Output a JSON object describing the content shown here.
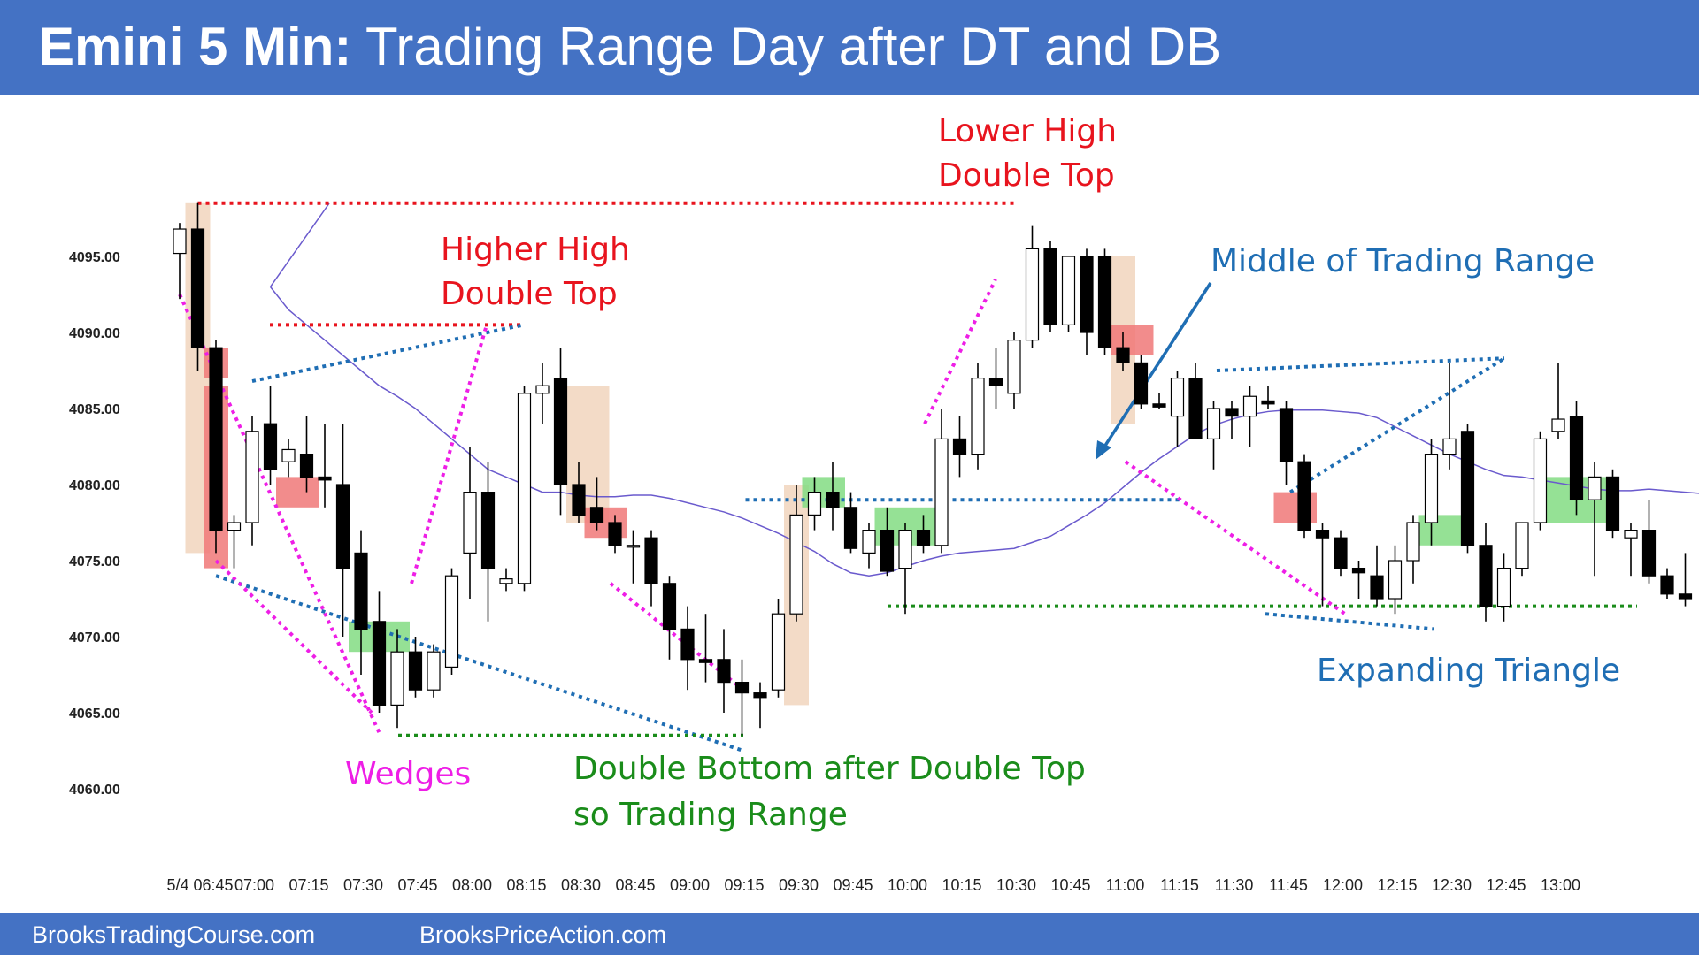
{
  "header": {
    "title_bold": "Emini 5 Min:",
    "title_rest": " Trading Range Day after DT and DB"
  },
  "footer": {
    "left": "BrooksTradingCourse.com",
    "right": "BrooksPriceAction.com"
  },
  "colors": {
    "header_bg": "#4472c4",
    "bull_body": "#ffffff",
    "bear_body": "#000000",
    "ema": "#6a5acd",
    "red": "#e8141e",
    "blue": "#1f6eb4",
    "magenta": "#ee1ee6",
    "green": "#1a8c1a",
    "signal_bar": "#f0d2b9",
    "entry_red": "#f07878",
    "entry_green": "#82dc82"
  },
  "chart_data": {
    "type": "candlestick",
    "title": "Emini 5 Min: Trading Range Day after DT and DB",
    "ylim": [
      4058,
      4100
    ],
    "y_ticks": [
      "4060.00",
      "4065.00",
      "4070.00",
      "4075.00",
      "4080.00",
      "4085.00",
      "4090.00",
      "4095.00"
    ],
    "x_ticks": [
      "5/4 06:45",
      "07:00",
      "07:15",
      "07:30",
      "07:45",
      "08:00",
      "08:15",
      "08:30",
      "08:45",
      "09:00",
      "09:15",
      "09:30",
      "09:45",
      "10:00",
      "10:15",
      "10:30",
      "10:45",
      "11:00",
      "11:15",
      "11:30",
      "11:45",
      "12:00",
      "12:15",
      "12:30",
      "12:45",
      "13:00"
    ],
    "candles": [
      {
        "o": 4095.2,
        "h": 4097.2,
        "l": 4092.2,
        "c": 4096.8
      },
      {
        "o": 4096.8,
        "h": 4098.5,
        "l": 4087.5,
        "c": 4089.0
      },
      {
        "o": 4089.0,
        "h": 4089.5,
        "l": 4075.5,
        "c": 4077.0
      },
      {
        "o": 4077.0,
        "h": 4078.0,
        "l": 4074.5,
        "c": 4077.5
      },
      {
        "o": 4077.5,
        "h": 4084.5,
        "l": 4076.0,
        "c": 4083.5
      },
      {
        "o": 4084.0,
        "h": 4086.5,
        "l": 4080.0,
        "c": 4081.0
      },
      {
        "o": 4081.5,
        "h": 4083.0,
        "l": 4080.5,
        "c": 4082.3
      },
      {
        "o": 4082.0,
        "h": 4084.5,
        "l": 4079.5,
        "c": 4080.5
      },
      {
        "o": 4080.5,
        "h": 4084.0,
        "l": 4078.5,
        "c": 4080.3
      },
      {
        "o": 4080.0,
        "h": 4084.0,
        "l": 4070.0,
        "c": 4074.5
      },
      {
        "o": 4075.5,
        "h": 4077.0,
        "l": 4067.5,
        "c": 4070.5
      },
      {
        "o": 4071.0,
        "h": 4073.0,
        "l": 4065.0,
        "c": 4065.5
      },
      {
        "o": 4065.5,
        "h": 4070.5,
        "l": 4064.0,
        "c": 4069.0
      },
      {
        "o": 4069.0,
        "h": 4070.0,
        "l": 4066.0,
        "c": 4066.5
      },
      {
        "o": 4066.5,
        "h": 4069.5,
        "l": 4066.0,
        "c": 4069.0
      },
      {
        "o": 4068.0,
        "h": 4074.5,
        "l": 4067.5,
        "c": 4074.0
      },
      {
        "o": 4075.5,
        "h": 4082.5,
        "l": 4072.5,
        "c": 4079.5
      },
      {
        "o": 4079.5,
        "h": 4081.5,
        "l": 4071.0,
        "c": 4074.5
      },
      {
        "o": 4073.5,
        "h": 4074.5,
        "l": 4073.0,
        "c": 4073.8
      },
      {
        "o": 4073.5,
        "h": 4086.5,
        "l": 4073.0,
        "c": 4086.0
      },
      {
        "o": 4086.0,
        "h": 4088.0,
        "l": 4084.0,
        "c": 4086.5
      },
      {
        "o": 4087.0,
        "h": 4089.0,
        "l": 4078.0,
        "c": 4080.0
      },
      {
        "o": 4080.0,
        "h": 4081.5,
        "l": 4077.5,
        "c": 4078.0
      },
      {
        "o": 4078.5,
        "h": 4080.5,
        "l": 4077.0,
        "c": 4077.5
      },
      {
        "o": 4077.5,
        "h": 4078.0,
        "l": 4075.5,
        "c": 4076.0
      },
      {
        "o": 4076.0,
        "h": 4077.0,
        "l": 4073.5,
        "c": 4076.0
      },
      {
        "o": 4076.5,
        "h": 4077.0,
        "l": 4072.0,
        "c": 4073.5
      },
      {
        "o": 4073.5,
        "h": 4074.0,
        "l": 4068.5,
        "c": 4070.5
      },
      {
        "o": 4070.5,
        "h": 4072.0,
        "l": 4066.5,
        "c": 4068.5
      },
      {
        "o": 4068.5,
        "h": 4071.5,
        "l": 4067.0,
        "c": 4068.3
      },
      {
        "o": 4068.5,
        "h": 4070.5,
        "l": 4065.0,
        "c": 4067.0
      },
      {
        "o": 4067.0,
        "h": 4068.5,
        "l": 4063.5,
        "c": 4066.3
      },
      {
        "o": 4066.3,
        "h": 4067.0,
        "l": 4064.0,
        "c": 4066.0
      },
      {
        "o": 4066.5,
        "h": 4072.5,
        "l": 4066.0,
        "c": 4071.5
      },
      {
        "o": 4071.5,
        "h": 4080.0,
        "l": 4071.0,
        "c": 4078.0
      },
      {
        "o": 4078.0,
        "h": 4080.5,
        "l": 4077.0,
        "c": 4079.5
      },
      {
        "o": 4079.5,
        "h": 4081.5,
        "l": 4077.0,
        "c": 4078.5
      },
      {
        "o": 4078.5,
        "h": 4079.5,
        "l": 4075.5,
        "c": 4075.8
      },
      {
        "o": 4075.5,
        "h": 4077.5,
        "l": 4074.5,
        "c": 4077.0
      },
      {
        "o": 4077.0,
        "h": 4078.5,
        "l": 4074.0,
        "c": 4074.3
      },
      {
        "o": 4074.5,
        "h": 4077.5,
        "l": 4071.5,
        "c": 4077.0
      },
      {
        "o": 4077.0,
        "h": 4078.0,
        "l": 4075.5,
        "c": 4076.0
      },
      {
        "o": 4076.0,
        "h": 4085.0,
        "l": 4075.5,
        "c": 4083.0
      },
      {
        "o": 4083.0,
        "h": 4084.5,
        "l": 4080.5,
        "c": 4082.0
      },
      {
        "o": 4082.0,
        "h": 4088.0,
        "l": 4081.0,
        "c": 4087.0
      },
      {
        "o": 4087.0,
        "h": 4089.0,
        "l": 4085.0,
        "c": 4086.5
      },
      {
        "o": 4086.0,
        "h": 4090.0,
        "l": 4085.0,
        "c": 4089.5
      },
      {
        "o": 4089.5,
        "h": 4097.0,
        "l": 4089.0,
        "c": 4095.5
      },
      {
        "o": 4095.5,
        "h": 4096.0,
        "l": 4090.0,
        "c": 4090.5
      },
      {
        "o": 4090.5,
        "h": 4095.0,
        "l": 4090.0,
        "c": 4095.0
      },
      {
        "o": 4095.0,
        "h": 4095.5,
        "l": 4088.5,
        "c": 4090.0
      },
      {
        "o": 4095.0,
        "h": 4095.5,
        "l": 4088.5,
        "c": 4089.0
      },
      {
        "o": 4089.0,
        "h": 4090.0,
        "l": 4087.5,
        "c": 4088.0
      },
      {
        "o": 4088.0,
        "h": 4088.5,
        "l": 4085.0,
        "c": 4085.3
      },
      {
        "o": 4085.3,
        "h": 4086.0,
        "l": 4085.0,
        "c": 4085.1
      },
      {
        "o": 4084.5,
        "h": 4087.5,
        "l": 4082.5,
        "c": 4087.0
      },
      {
        "o": 4087.0,
        "h": 4088.0,
        "l": 4083.0,
        "c": 4083.0
      },
      {
        "o": 4083.0,
        "h": 4085.5,
        "l": 4081.0,
        "c": 4085.0
      },
      {
        "o": 4085.0,
        "h": 4085.5,
        "l": 4083.0,
        "c": 4084.5
      },
      {
        "o": 4084.5,
        "h": 4086.5,
        "l": 4082.5,
        "c": 4085.8
      },
      {
        "o": 4085.5,
        "h": 4086.5,
        "l": 4085.0,
        "c": 4085.3
      },
      {
        "o": 4085.0,
        "h": 4085.5,
        "l": 4080.0,
        "c": 4081.5
      },
      {
        "o": 4081.5,
        "h": 4082.0,
        "l": 4076.5,
        "c": 4077.0
      },
      {
        "o": 4077.0,
        "h": 4077.5,
        "l": 4072.0,
        "c": 4076.5
      },
      {
        "o": 4076.5,
        "h": 4077.0,
        "l": 4074.0,
        "c": 4074.5
      },
      {
        "o": 4074.5,
        "h": 4075.0,
        "l": 4072.5,
        "c": 4074.2
      },
      {
        "o": 4074.0,
        "h": 4076.0,
        "l": 4072.0,
        "c": 4072.5
      },
      {
        "o": 4072.5,
        "h": 4076.0,
        "l": 4071.5,
        "c": 4075.0
      },
      {
        "o": 4075.0,
        "h": 4078.0,
        "l": 4073.5,
        "c": 4077.5
      },
      {
        "o": 4077.5,
        "h": 4083.0,
        "l": 4076.0,
        "c": 4082.0
      },
      {
        "o": 4082.0,
        "h": 4088.0,
        "l": 4081.0,
        "c": 4083.0
      },
      {
        "o": 4083.5,
        "h": 4084.0,
        "l": 4075.5,
        "c": 4076.0
      },
      {
        "o": 4076.0,
        "h": 4077.5,
        "l": 4071.0,
        "c": 4072.0
      },
      {
        "o": 4072.0,
        "h": 4075.5,
        "l": 4071.0,
        "c": 4074.5
      },
      {
        "o": 4074.5,
        "h": 4077.5,
        "l": 4074.0,
        "c": 4077.5
      },
      {
        "o": 4077.5,
        "h": 4083.5,
        "l": 4077.0,
        "c": 4083.0
      },
      {
        "o": 4083.5,
        "h": 4088.0,
        "l": 4083.0,
        "c": 4084.3
      },
      {
        "o": 4084.5,
        "h": 4085.5,
        "l": 4078.0,
        "c": 4079.0
      },
      {
        "o": 4079.0,
        "h": 4081.5,
        "l": 4074.0,
        "c": 4080.5
      },
      {
        "o": 4080.5,
        "h": 4081.0,
        "l": 4076.5,
        "c": 4077.0
      },
      {
        "o": 4076.5,
        "h": 4077.5,
        "l": 4074.0,
        "c": 4077.0
      },
      {
        "o": 4077.0,
        "h": 4079.0,
        "l": 4073.5,
        "c": 4074.0
      },
      {
        "o": 4074.0,
        "h": 4074.5,
        "l": 4072.5,
        "c": 4072.8
      },
      {
        "o": 4072.8,
        "h": 4075.5,
        "l": 4072.0,
        "c": 4072.5
      }
    ],
    "ema": [
      4093.0,
      4091.5,
      4090.5,
      4089.5,
      4088.5,
      4087.5,
      4086.5,
      4085.8,
      4085.0,
      4084.0,
      4083.0,
      4082.0,
      4081.0,
      4080.5,
      4080.0,
      4079.5,
      4079.5,
      4079.3,
      4079.2,
      4079.2,
      4079.3,
      4079.3,
      4079.1,
      4078.8,
      4078.5,
      4078.2,
      4077.8,
      4077.3,
      4076.8,
      4076.2,
      4075.6,
      4074.8,
      4074.2,
      4074.0,
      4074.2,
      4074.6,
      4075.0,
      4075.3,
      4075.5,
      4075.6,
      4075.7,
      4075.8,
      4076.2,
      4076.6,
      4077.3,
      4078.0,
      4078.8,
      4079.8,
      4080.8,
      4081.7,
      4082.5,
      4083.3,
      4083.9,
      4084.3,
      4084.6,
      4084.8,
      4084.9,
      4084.9,
      4084.9,
      4084.8,
      4084.7,
      4084.4,
      4083.8,
      4083.2,
      4082.6,
      4082.0,
      4081.5,
      4081.0,
      4080.6,
      4080.5,
      4080.3,
      4080.1,
      4079.9,
      4079.7,
      4079.6,
      4079.6,
      4079.7,
      4079.6,
      4079.5,
      4079.4,
      4079.3,
      4079.0,
      4078.6,
      4078.2
    ]
  },
  "annotations": {
    "lower_high": [
      "Lower High",
      "Double Top"
    ],
    "higher_high": [
      "Higher High",
      "Double Top"
    ],
    "middle_range": "Middle of Trading Range",
    "wedges": "Wedges",
    "double_bottom": [
      "Double Bottom after Double Top",
      "so Trading Range"
    ],
    "expanding_triangle": "Expanding Triangle"
  }
}
